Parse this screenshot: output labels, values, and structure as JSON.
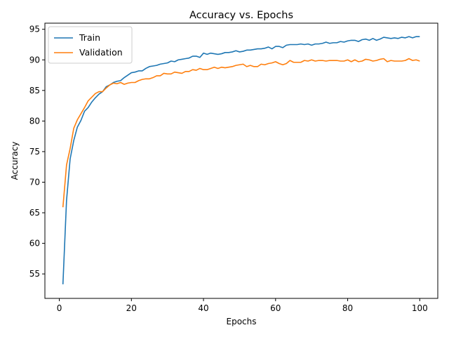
{
  "chart_data": {
    "type": "line",
    "title": "Accuracy vs. Epochs",
    "xlabel": "Epochs",
    "ylabel": "Accuracy",
    "xlim": [
      -4,
      105
    ],
    "ylim": [
      51,
      96
    ],
    "xticks": [
      0,
      20,
      40,
      60,
      80,
      100
    ],
    "yticks": [
      55,
      60,
      65,
      70,
      75,
      80,
      85,
      90,
      95
    ],
    "grid": false,
    "legend": "upper-left",
    "x": [
      1,
      2,
      3,
      4,
      5,
      6,
      7,
      8,
      9,
      10,
      11,
      12,
      13,
      14,
      15,
      16,
      17,
      18,
      19,
      20,
      21,
      22,
      23,
      24,
      25,
      26,
      27,
      28,
      29,
      30,
      31,
      32,
      33,
      34,
      35,
      36,
      37,
      38,
      39,
      40,
      41,
      42,
      43,
      44,
      45,
      46,
      47,
      48,
      49,
      50,
      51,
      52,
      53,
      54,
      55,
      56,
      57,
      58,
      59,
      60,
      61,
      62,
      63,
      64,
      65,
      66,
      67,
      68,
      69,
      70,
      71,
      72,
      73,
      74,
      75,
      76,
      77,
      78,
      79,
      80,
      81,
      82,
      83,
      84,
      85,
      86,
      87,
      88,
      89,
      90,
      91,
      92,
      93,
      94,
      95,
      96,
      97,
      98,
      99,
      100
    ],
    "series": [
      {
        "name": "Train",
        "color": "#1f77b4",
        "values": [
          53.3,
          67.0,
          73.8,
          76.8,
          79.0,
          80.1,
          81.6,
          82.2,
          83.1,
          83.8,
          84.4,
          84.8,
          85.6,
          85.9,
          86.3,
          86.5,
          86.6,
          87.1,
          87.5,
          87.9,
          88.0,
          88.2,
          88.2,
          88.6,
          88.9,
          89.0,
          89.1,
          89.3,
          89.4,
          89.5,
          89.8,
          89.7,
          90.0,
          90.1,
          90.2,
          90.3,
          90.6,
          90.6,
          90.4,
          91.1,
          90.9,
          91.1,
          91.0,
          90.9,
          91.0,
          91.2,
          91.2,
          91.3,
          91.5,
          91.3,
          91.4,
          91.6,
          91.6,
          91.7,
          91.8,
          91.8,
          91.9,
          92.1,
          91.8,
          92.2,
          92.2,
          92.0,
          92.4,
          92.5,
          92.5,
          92.5,
          92.6,
          92.5,
          92.6,
          92.4,
          92.6,
          92.6,
          92.7,
          92.9,
          92.7,
          92.8,
          92.8,
          93.0,
          92.9,
          93.1,
          93.2,
          93.2,
          93.0,
          93.3,
          93.4,
          93.2,
          93.5,
          93.2,
          93.4,
          93.7,
          93.6,
          93.5,
          93.6,
          93.5,
          93.7,
          93.6,
          93.8,
          93.6,
          93.8,
          93.8
        ]
      },
      {
        "name": "Validation",
        "color": "#ff7f0e",
        "values": [
          65.9,
          72.8,
          75.5,
          78.8,
          80.2,
          81.2,
          82.2,
          83.3,
          83.9,
          84.5,
          84.8,
          84.8,
          85.4,
          85.9,
          86.2,
          86.1,
          86.3,
          86.0,
          86.2,
          86.3,
          86.3,
          86.6,
          86.8,
          86.9,
          86.9,
          87.1,
          87.4,
          87.4,
          87.8,
          87.7,
          87.7,
          88.0,
          87.9,
          87.8,
          88.1,
          88.1,
          88.4,
          88.3,
          88.6,
          88.4,
          88.4,
          88.6,
          88.8,
          88.6,
          88.8,
          88.7,
          88.8,
          88.9,
          89.1,
          89.2,
          89.3,
          88.9,
          89.1,
          88.9,
          88.9,
          89.3,
          89.2,
          89.4,
          89.5,
          89.7,
          89.4,
          89.2,
          89.4,
          89.9,
          89.6,
          89.6,
          89.6,
          89.9,
          89.8,
          90.0,
          89.8,
          89.9,
          89.9,
          89.8,
          89.9,
          89.9,
          89.9,
          89.8,
          89.8,
          90.0,
          89.7,
          90.0,
          89.7,
          89.8,
          90.1,
          90.0,
          89.8,
          89.9,
          90.1,
          90.2,
          89.7,
          89.9,
          89.8,
          89.8,
          89.8,
          89.9,
          90.2,
          89.9,
          90.0,
          89.8
        ]
      }
    ]
  }
}
